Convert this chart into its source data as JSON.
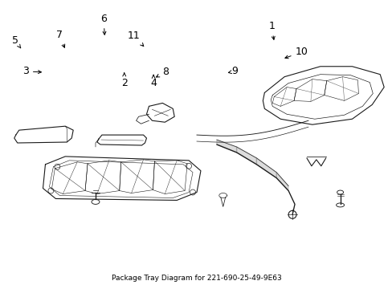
{
  "title": "Package Tray Diagram for 221-690-25-49-9E63",
  "bg_color": "#ffffff",
  "line_color": "#1a1a1a",
  "text_color": "#000000",
  "fig_width": 4.89,
  "fig_height": 3.6,
  "dpi": 100,
  "label_positions": {
    "1": [
      0.695,
      0.895,
      0.7,
      0.82
    ],
    "2": [
      0.33,
      0.115,
      0.33,
      0.18
    ],
    "3": [
      0.068,
      0.22,
      0.115,
      0.234
    ],
    "4": [
      0.41,
      0.095,
      0.41,
      0.155
    ],
    "5": [
      0.04,
      0.62,
      0.058,
      0.568
    ],
    "6": [
      0.27,
      0.87,
      0.282,
      0.808
    ],
    "7": [
      0.16,
      0.7,
      0.188,
      0.688
    ],
    "8": [
      0.445,
      0.268,
      0.445,
      0.308
    ],
    "9": [
      0.62,
      0.2,
      0.622,
      0.26
    ],
    "10": [
      0.81,
      0.445,
      0.77,
      0.445
    ],
    "11": [
      0.355,
      0.618,
      0.398,
      0.61
    ]
  }
}
